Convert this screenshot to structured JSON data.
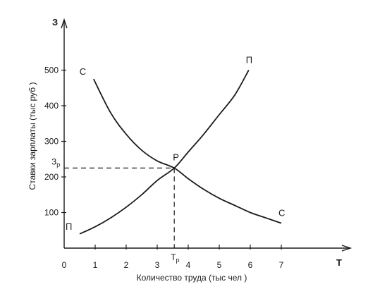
{
  "chart_data": {
    "type": "line",
    "title": "",
    "xlabel": "Количество труда (тыс чел )",
    "ylabel": "Ставки зарплаты (тыс руб )",
    "y_axis_letter": "З",
    "x_axis_letter": "Т",
    "xlim": [
      0,
      9
    ],
    "ylim": [
      0,
      600
    ],
    "x_ticks": [
      0,
      1,
      2,
      3,
      4,
      5,
      6,
      7
    ],
    "y_ticks": [
      100,
      200,
      300,
      400,
      500
    ],
    "grid": false,
    "legend": "none",
    "series": [
      {
        "name": "С",
        "points": [
          [
            0.95,
            475
          ],
          [
            1.5,
            380
          ],
          [
            2.0,
            320
          ],
          [
            2.5,
            275
          ],
          [
            3.0,
            245
          ],
          [
            3.55,
            225
          ],
          [
            4.0,
            195
          ],
          [
            4.5,
            165
          ],
          [
            5.0,
            140
          ],
          [
            5.5,
            120
          ],
          [
            6.0,
            100
          ],
          [
            6.5,
            85
          ],
          [
            7.0,
            70
          ]
        ]
      },
      {
        "name": "П",
        "points": [
          [
            0.5,
            40
          ],
          [
            1.0,
            60
          ],
          [
            1.5,
            85
          ],
          [
            2.0,
            115
          ],
          [
            2.5,
            150
          ],
          [
            3.0,
            190
          ],
          [
            3.55,
            225
          ],
          [
            4.0,
            270
          ],
          [
            4.5,
            320
          ],
          [
            5.0,
            375
          ],
          [
            5.5,
            430
          ],
          [
            5.95,
            500
          ]
        ]
      }
    ],
    "equilibrium": {
      "label": "Р",
      "x": 3.55,
      "y": 225,
      "x_label": "Т",
      "x_label_sub": "р",
      "y_label": "З",
      "y_label_sub": "р"
    }
  }
}
